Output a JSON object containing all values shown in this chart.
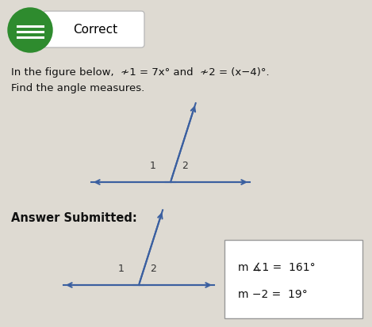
{
  "background_color": "#dedad2",
  "correct_badge": {
    "circle_color": "#2e8b2e",
    "text": "Correct",
    "text_color": "#000000"
  },
  "problem_line1": "In the figure below,  ≁1 = 7x° and  ≁2 = (x−4)°.",
  "problem_line2": "Find the angle measures.",
  "answer_submitted_text": "Answer Submitted:",
  "diagram_color": "#3a5fa0",
  "answer_box": {
    "line1": "m −1 =  161°",
    "line2": "m −2 =  19°",
    "box_color": "#ffffff",
    "text_color": "#111111",
    "border_color": "#999999"
  }
}
